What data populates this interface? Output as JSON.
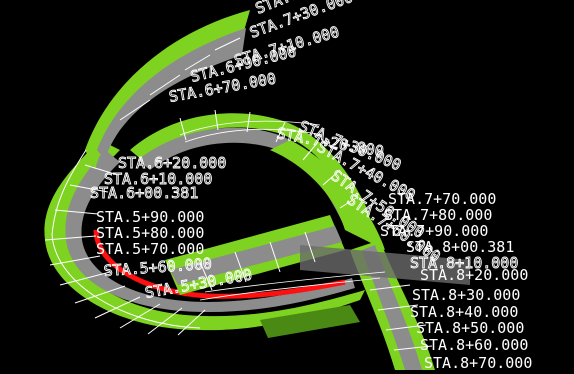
{
  "viewport": {
    "background": "#000000",
    "colors": {
      "edge_fill": "#7ed321",
      "edge_dark": "#4a8a14",
      "lane": "#8c8c8c",
      "lane_dark": "#6a6a6a",
      "gridline": "#ffffff",
      "red_edge": "#ff1010",
      "label": "#ffffff"
    },
    "station_labels": [
      "STA.7+40.000",
      "STA.7+30.000",
      "STA.7+10.000",
      "STA.6+90.000",
      "STA.6+70.000",
      "STA.7+20.000",
      "STA.7+30.000",
      "STA.7+40.000",
      "STA.7+50.000",
      "STA.6+20.000",
      "STA.6+10.000",
      "STA.6+00.381",
      "STA.7+60.000",
      "STA.7+70.000",
      "STA.7+80.000",
      "STA.5+90.000",
      "STA.7+90.000",
      "STA.5+80.000",
      "STA.8+00.381",
      "STA.5+70.000",
      "STA.8+10.000",
      "STA.5+60.000",
      "STA.8+20.000",
      "STA.5+30.000",
      "STA.8+30.000",
      "STA.8+40.000",
      "STA.8+50.000",
      "STA.8+60.000",
      "STA.8+70.000"
    ]
  }
}
